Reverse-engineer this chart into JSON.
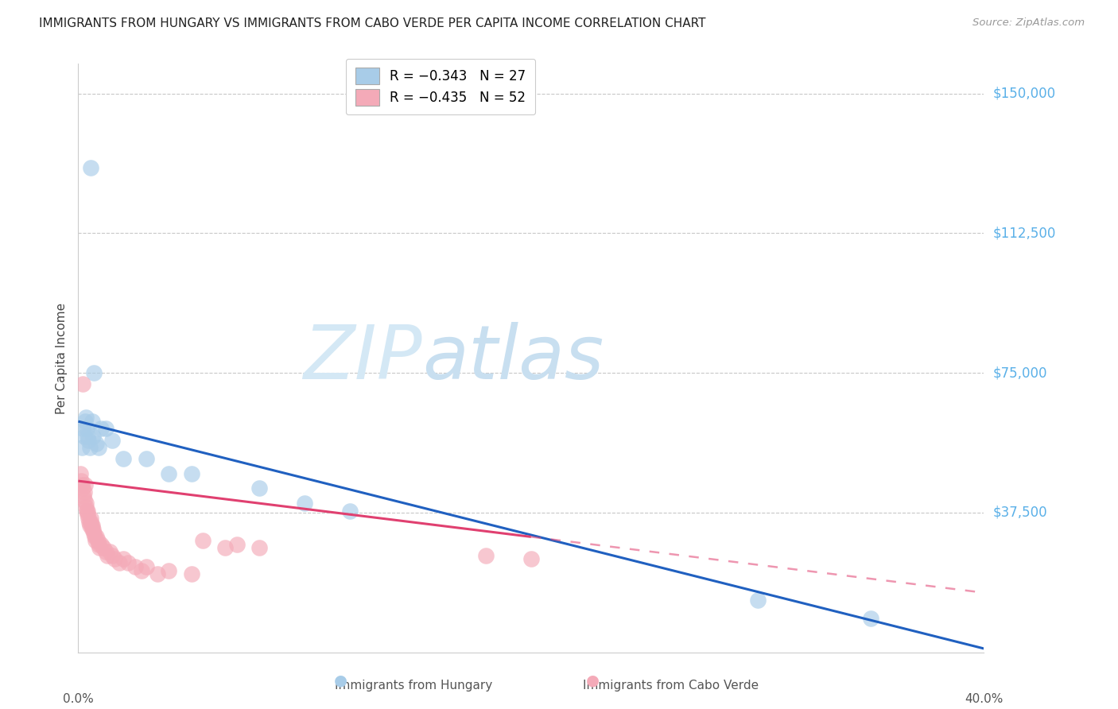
{
  "title": "IMMIGRANTS FROM HUNGARY VS IMMIGRANTS FROM CABO VERDE PER CAPITA INCOME CORRELATION CHART",
  "source": "Source: ZipAtlas.com",
  "ylabel": "Per Capita Income",
  "yticks": [
    0,
    37500,
    75000,
    112500,
    150000
  ],
  "ytick_labels": [
    "",
    "$37,500",
    "$75,000",
    "$112,500",
    "$150,000"
  ],
  "xmin": 0.0,
  "xmax": 40.0,
  "ymin": 0,
  "ymax": 158000,
  "legend_hungary": "R = −0.343   N = 27",
  "legend_caboverde": "R = −0.435   N = 52",
  "color_hungary": "#a8cce8",
  "color_caboverde": "#f4aab8",
  "color_line_hungary": "#2060c0",
  "color_line_caboverde": "#e04070",
  "color_yticks": "#5ab0e8",
  "watermark_zip_color": "#d0e8f8",
  "watermark_atlas_color": "#c0d8f0",
  "hung_line_x0": 0,
  "hung_line_y0": 62000,
  "hung_line_x1": 40,
  "hung_line_y1": 1000,
  "cv_line_x0": 0,
  "cv_line_y0": 46000,
  "cv_line_x1": 40,
  "cv_line_y1": 16000,
  "cv_solid_end": 20,
  "cv_dash_end": 40,
  "hung_x": [
    0.15,
    0.2,
    0.25,
    0.3,
    0.35,
    0.38,
    0.42,
    0.45,
    0.5,
    0.55,
    0.6,
    0.65,
    0.7,
    0.8,
    0.9,
    1.0,
    1.2,
    1.5,
    2.0,
    3.0,
    4.0,
    5.0,
    8.0,
    10.0,
    12.0,
    30.0,
    35.0
  ],
  "hung_y": [
    55000,
    60000,
    58000,
    62000,
    63000,
    60000,
    58000,
    57000,
    55000,
    130000,
    62000,
    58000,
    75000,
    56000,
    55000,
    60000,
    60000,
    57000,
    52000,
    52000,
    48000,
    48000,
    44000,
    40000,
    38000,
    14000,
    9000
  ],
  "cv_x": [
    0.1,
    0.12,
    0.15,
    0.18,
    0.2,
    0.22,
    0.25,
    0.28,
    0.3,
    0.32,
    0.35,
    0.38,
    0.4,
    0.42,
    0.45,
    0.48,
    0.5,
    0.53,
    0.55,
    0.58,
    0.6,
    0.63,
    0.65,
    0.7,
    0.73,
    0.75,
    0.8,
    0.85,
    0.9,
    0.95,
    1.0,
    1.1,
    1.2,
    1.3,
    1.4,
    1.5,
    1.6,
    1.8,
    2.0,
    2.2,
    2.5,
    2.8,
    3.0,
    3.5,
    4.0,
    5.0,
    5.5,
    6.5,
    7.0,
    8.0,
    18.0,
    20.0
  ],
  "cv_y": [
    48000,
    46000,
    45000,
    72000,
    44000,
    42000,
    43000,
    41000,
    45000,
    40000,
    39000,
    38000,
    37000,
    38000,
    36000,
    35000,
    34000,
    36000,
    35000,
    34000,
    33000,
    34000,
    33000,
    32000,
    31000,
    30000,
    31000,
    30000,
    29000,
    28000,
    29000,
    28000,
    27000,
    26000,
    27000,
    26000,
    25000,
    24000,
    25000,
    24000,
    23000,
    22000,
    23000,
    21000,
    22000,
    21000,
    30000,
    28000,
    29000,
    28000,
    26000,
    25000
  ]
}
